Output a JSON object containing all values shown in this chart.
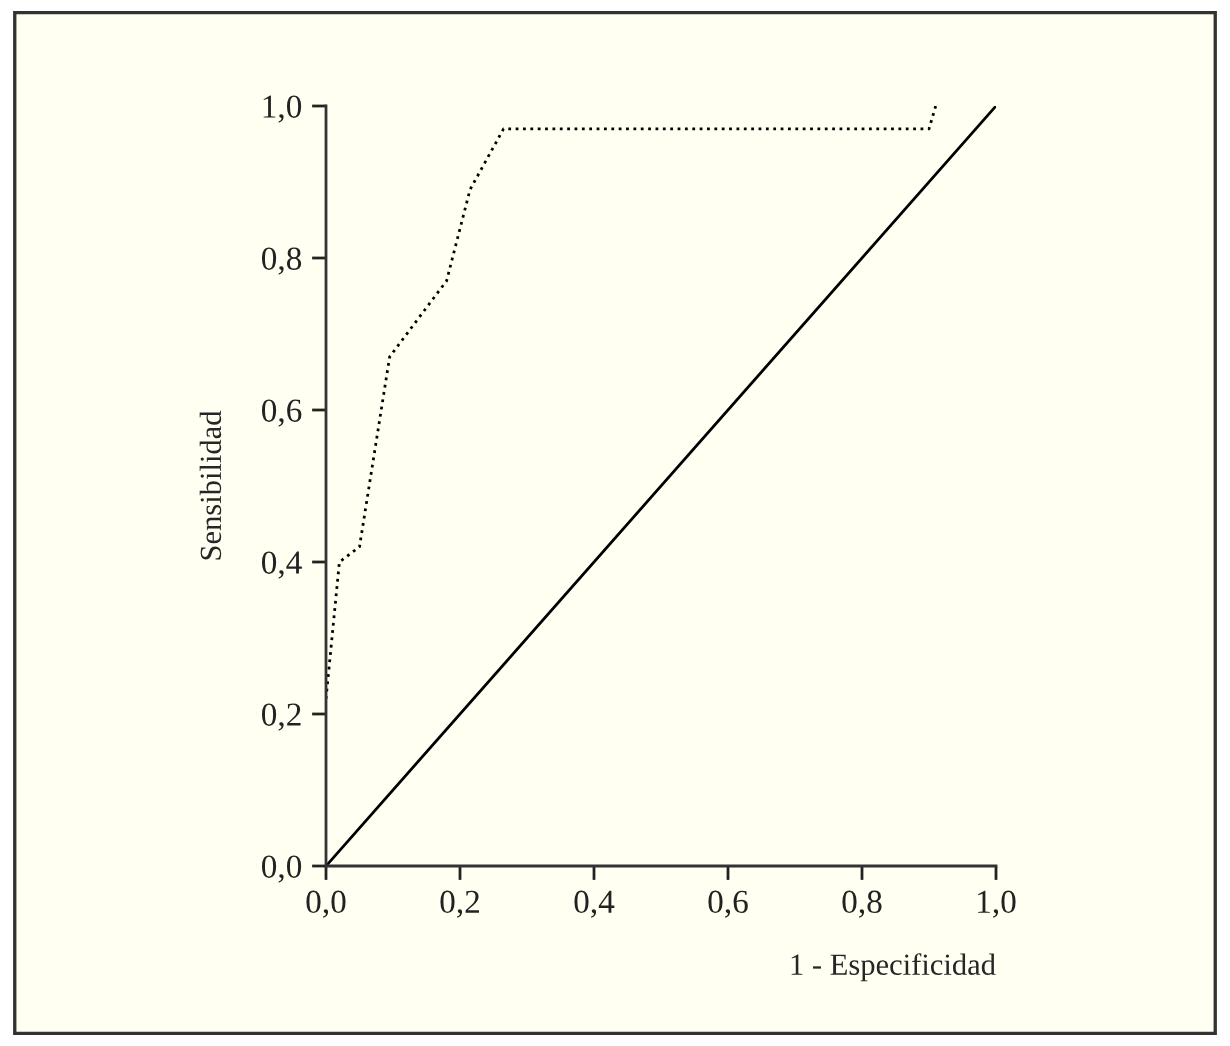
{
  "chart_data": {
    "type": "line",
    "xlabel": "1 - Especificidad",
    "ylabel": "Sensibilidad",
    "series": [
      {
        "color": "#000000",
        "line_style": "dotted",
        "x": [
          0.0,
          0.02,
          0.05,
          0.095,
          0.18,
          0.215,
          0.265,
          0.9,
          0.91
        ],
        "values": [
          0.22,
          0.4,
          0.42,
          0.67,
          0.77,
          0.89,
          0.97,
          0.97,
          1.0
        ]
      },
      {
        "color": "#000000",
        "line_style": "solid",
        "x": [
          0.0,
          1.0
        ],
        "values": [
          0.0,
          1.0
        ]
      }
    ],
    "xlim": [
      0,
      1
    ],
    "ylim": [
      0,
      1
    ],
    "xticks": [
      {
        "value": 0,
        "label": "0,0"
      },
      {
        "value": 0.2,
        "label": "0,2"
      },
      {
        "value": 0.4,
        "label": "0,4"
      },
      {
        "value": 0.6,
        "label": "0,6"
      },
      {
        "value": 0.8,
        "label": "0,8"
      },
      {
        "value": 1,
        "label": "1,0"
      }
    ],
    "yticks": [
      {
        "value": 0,
        "label": "0,0"
      },
      {
        "value": 0.2,
        "label": "0,2"
      },
      {
        "value": 0.4,
        "label": "0,4"
      },
      {
        "value": 0.6,
        "label": "0,6"
      },
      {
        "value": 0.8,
        "label": "0,8"
      },
      {
        "value": 1,
        "label": "1,0"
      }
    ],
    "grid": false
  }
}
